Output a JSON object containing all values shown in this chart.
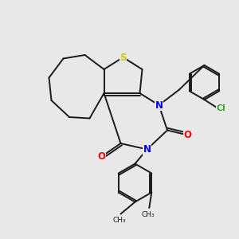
{
  "background_color": "#e8e8e8",
  "bond_color": "#1a1a1a",
  "S_color": "#cccc00",
  "N_color": "#0000ff",
  "O_color": "#ff0000",
  "Cl_color": "#33aa33",
  "figsize": [
    3.0,
    3.0
  ],
  "dpi": 100,
  "lw": 1.4,
  "xlim": [
    0,
    10
  ],
  "ylim": [
    0,
    10
  ]
}
